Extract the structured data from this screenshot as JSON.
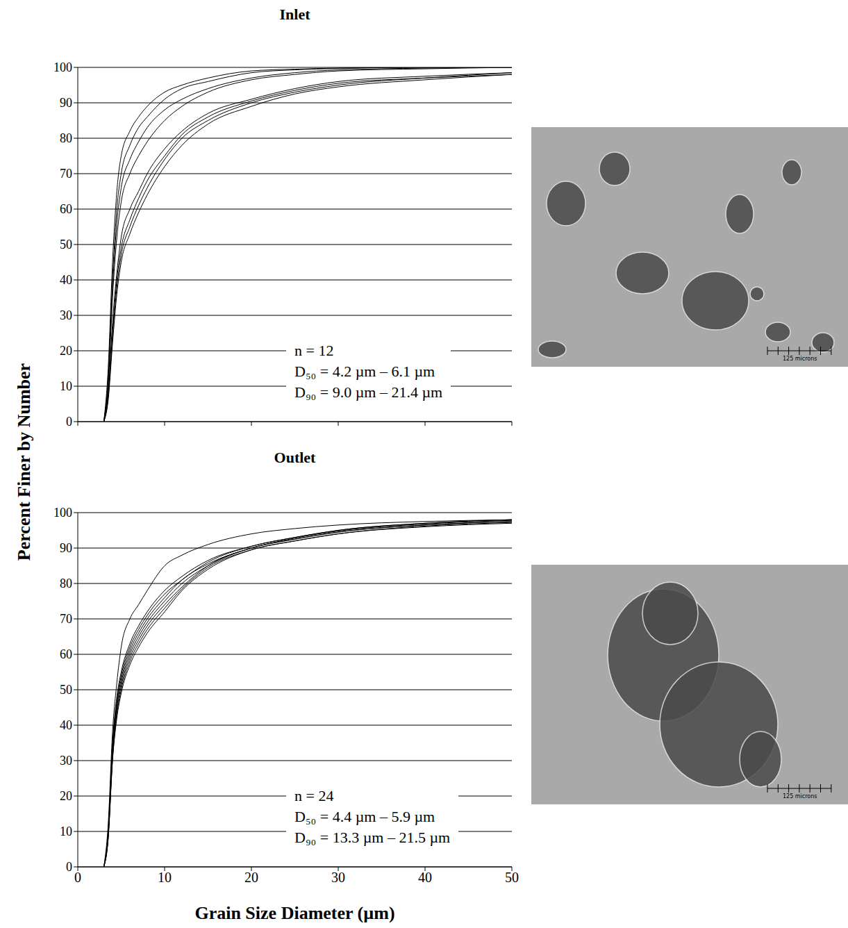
{
  "shared_y_label": "Percent Finer by Number",
  "images": [
    {
      "scale_bar_label": "125 microns"
    },
    {
      "scale_bar_label": "125 microns"
    }
  ],
  "chart_data": [
    {
      "type": "line",
      "title": "Inlet",
      "x": [
        3,
        3.5,
        4,
        4.5,
        5,
        6,
        7,
        8,
        10,
        12,
        15,
        20,
        25,
        30,
        40,
        50
      ],
      "series": [
        {
          "color": "#000000",
          "values": [
            0,
            15,
            45,
            65,
            75,
            82,
            86,
            89,
            93,
            95,
            97,
            99,
            99.5,
            99.8,
            100,
            100
          ]
        },
        {
          "color": "#000000",
          "values": [
            0,
            12,
            40,
            60,
            70,
            78,
            83,
            86,
            91,
            94,
            96,
            98.5,
            99.3,
            99.7,
            100,
            100
          ]
        },
        {
          "color": "#000000",
          "values": [
            0,
            12,
            38,
            56,
            66,
            74,
            79,
            83,
            88,
            91,
            94,
            97,
            98.5,
            99.3,
            99.8,
            100
          ]
        },
        {
          "color": "#000000",
          "values": [
            0,
            10,
            35,
            52,
            62,
            70,
            75,
            79,
            85,
            89,
            93,
            96.5,
            98,
            99,
            99.6,
            100
          ]
        },
        {
          "color": "#000000",
          "values": [
            0,
            8,
            28,
            42,
            52,
            60,
            65,
            70,
            77,
            82,
            87,
            91,
            94,
            96,
            97.5,
            98.5
          ]
        },
        {
          "color": "#000000",
          "values": [
            0,
            7,
            25,
            40,
            49,
            57,
            63,
            68,
            75,
            81,
            86,
            90.5,
            93.5,
            95.5,
            97,
            98
          ]
        },
        {
          "color": "#000000",
          "values": [
            0,
            7,
            24,
            38,
            47,
            55,
            61,
            66,
            74,
            80,
            85,
            90,
            93,
            95,
            97,
            98.5
          ]
        },
        {
          "color": "#000000",
          "values": [
            0,
            6,
            22,
            36,
            45,
            53,
            59,
            64,
            72,
            78,
            84,
            89,
            92.5,
            94.5,
            96.5,
            98
          ]
        }
      ],
      "xlim": [
        0,
        50
      ],
      "xticks": [
        0,
        10,
        20,
        30,
        40,
        50
      ],
      "ylim": [
        0,
        100
      ],
      "yticks": [
        0,
        10,
        20,
        30,
        40,
        50,
        60,
        70,
        80,
        90,
        100
      ],
      "grid": true,
      "tick_labels": "y",
      "annotations": [
        "n = 12",
        "D₅₀ = 4.2 µm – 6.1 µm",
        "D₉₀ = 9.0 µm – 21.4 µm"
      ]
    },
    {
      "type": "line",
      "title": "Outlet",
      "x_label": "Grain Size Diameter (µm)",
      "x": [
        3,
        3.5,
        4,
        4.5,
        5,
        6,
        7,
        8,
        10,
        12,
        15,
        20,
        25,
        30,
        40,
        50
      ],
      "series": [
        {
          "color": "#000000",
          "values": [
            0,
            12,
            38,
            52,
            62,
            70,
            74,
            78,
            85,
            88,
            91,
            94,
            95.5,
            96.5,
            97.5,
            98
          ]
        },
        {
          "color": "#000000",
          "values": [
            0,
            10,
            35,
            48,
            55,
            63,
            68,
            72,
            78,
            82,
            86.5,
            90.5,
            93,
            95,
            97,
            98
          ]
        },
        {
          "color": "#000000",
          "values": [
            0,
            10,
            34,
            47,
            54,
            62,
            67,
            71,
            77,
            81,
            86,
            90.5,
            93,
            95,
            97,
            98
          ]
        },
        {
          "color": "#000000",
          "values": [
            0,
            9,
            33,
            46,
            53,
            61,
            66,
            70,
            76,
            81,
            85.5,
            90,
            92.8,
            94.8,
            96.8,
            97.8
          ]
        },
        {
          "color": "#000000",
          "values": [
            0,
            9,
            32,
            45,
            52,
            60,
            65,
            69,
            75,
            80,
            85,
            90,
            92.5,
            94.5,
            96.5,
            97.5
          ]
        },
        {
          "color": "#000000",
          "values": [
            0,
            8,
            31,
            44,
            51,
            59,
            64,
            68,
            74,
            79,
            85,
            90,
            92.5,
            94.5,
            96.5,
            97.5
          ]
        },
        {
          "color": "#000000",
          "values": [
            0,
            8,
            30,
            43,
            50,
            58,
            63,
            67,
            73,
            78.5,
            84.5,
            89.5,
            92,
            94,
            96.2,
            97.2
          ]
        },
        {
          "color": "#000000",
          "values": [
            0,
            8,
            30,
            42,
            49,
            57,
            62,
            66,
            72,
            78,
            84,
            89.5,
            92,
            94,
            96,
            97
          ]
        }
      ],
      "xlim": [
        0,
        50
      ],
      "xticks": [
        0,
        10,
        20,
        30,
        40,
        50
      ],
      "ylim": [
        0,
        100
      ],
      "yticks": [
        0,
        10,
        20,
        30,
        40,
        50,
        60,
        70,
        80,
        90,
        100
      ],
      "grid": true,
      "annotations": [
        "n = 24",
        "D₅₀ = 4.4 µm – 5.9 µm",
        "D₉₀ = 13.3 µm – 21.5 µm"
      ]
    }
  ]
}
